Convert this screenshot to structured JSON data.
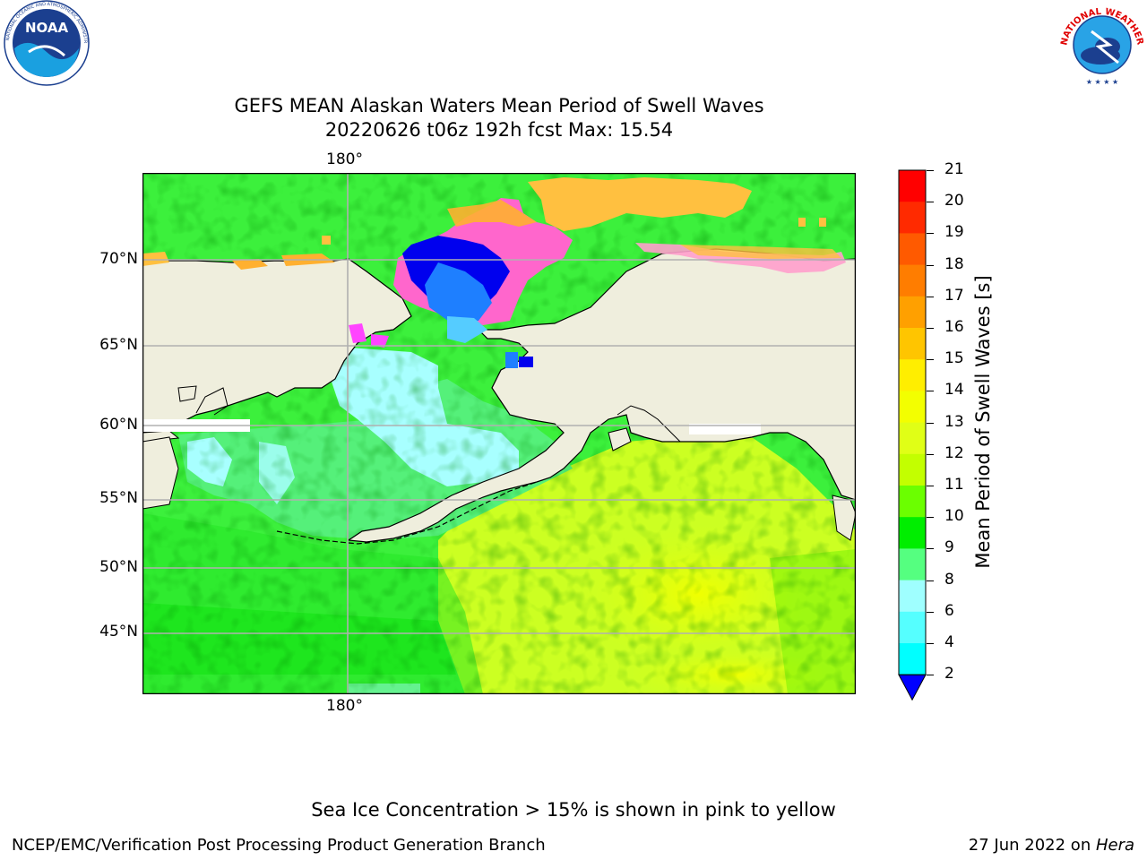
{
  "header": {
    "title_line1": "GEFS MEAN Alaskan Waters Mean Period of Swell Waves",
    "title_line2": "20220626 t06z 192h fcst   Max: 15.54"
  },
  "logos": {
    "noaa": {
      "text": "NOAA",
      "ring_text": "NATIONAL OCEANIC AND ATMOSPHERIC ADMINISTRATION · U.S. DEPARTMENT OF COMMERCE"
    },
    "nws": {
      "ring_text": "NATIONAL WEATHER SERVICE"
    }
  },
  "map": {
    "lon_label_top": "180°",
    "lon_label_bottom": "180°",
    "lat_labels": [
      "70°N",
      "65°N",
      "60°N",
      "55°N",
      "50°N",
      "45°N"
    ],
    "land_color": "#efeedd",
    "coast_color": "#000000"
  },
  "colorbar": {
    "label": "Mean Period of Swell Waves [s]",
    "ticks": [
      "21",
      "20",
      "19",
      "18",
      "17",
      "16",
      "15",
      "14",
      "13",
      "12",
      "11",
      "10",
      "9",
      "8",
      "6",
      "4",
      "2"
    ],
    "colors": [
      "#ff0000",
      "#ff2a00",
      "#ff5a00",
      "#ff7d00",
      "#ffa000",
      "#ffc500",
      "#ffee00",
      "#f3ff00",
      "#e0ff16",
      "#c3ff00",
      "#6bff00",
      "#00ee00",
      "#55ff80",
      "#9fffff",
      "#55ffff",
      "#00ffff",
      "#00ddff",
      "#0080ff",
      "#0000ff"
    ]
  },
  "footer": {
    "note": "Sea Ice Concentration > 15% is shown in pink to yellow",
    "left": "NCEP/EMC/Verification Post Processing Product Generation Branch",
    "right_prefix": "27 Jun 2022 on ",
    "right_machine": "Hera"
  }
}
